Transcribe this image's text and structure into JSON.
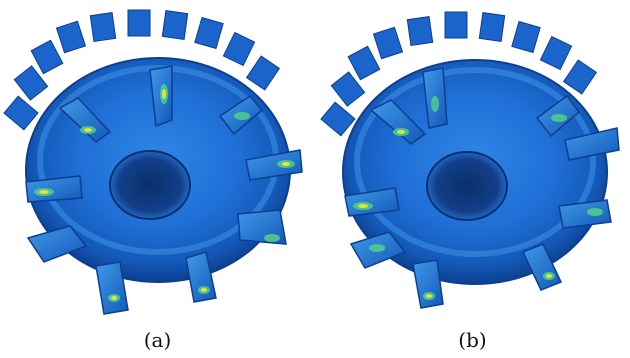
{
  "figure": {
    "panels": [
      {
        "id": "a",
        "caption": "(a)"
      },
      {
        "id": "b",
        "caption": "(b)"
      }
    ],
    "colors": {
      "base_blue": "#1f6fd6",
      "dark_blue": "#0c3f8f",
      "light_blue": "#4aa3f0",
      "stress_green": "#52d08a",
      "stress_yellow": "#e6e23a",
      "background": "#ffffff"
    }
  }
}
